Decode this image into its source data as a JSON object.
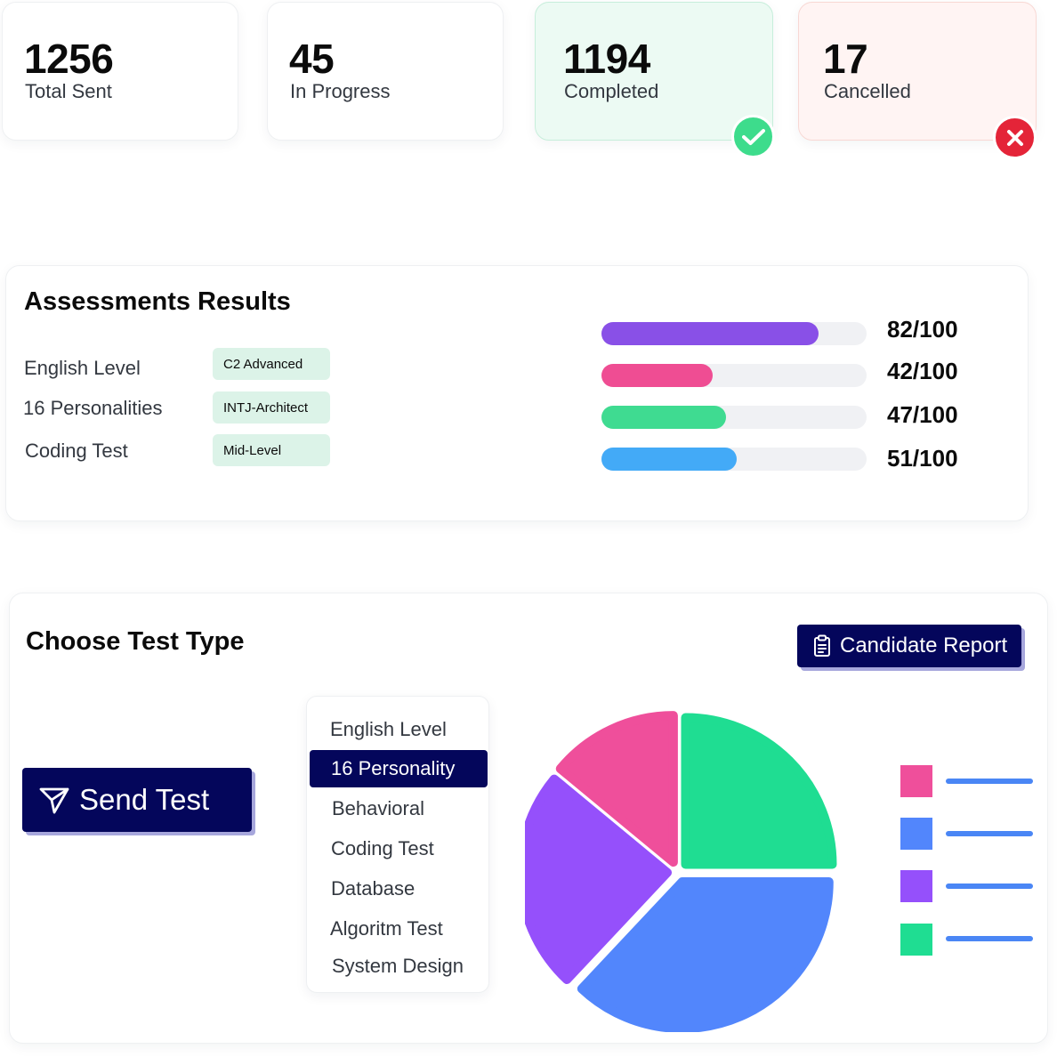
{
  "stats": [
    {
      "value": "1256",
      "label": "Total Sent"
    },
    {
      "value": "45",
      "label": "In Progress"
    },
    {
      "value": "1194",
      "label": "Completed",
      "badge_icon": "check-icon"
    },
    {
      "value": "17",
      "label": "Cancelled",
      "badge_icon": "close-icon"
    }
  ],
  "assessments": {
    "title": "Assessments Results",
    "rows": [
      {
        "label": "English Level",
        "tag": "C2 Advanced"
      },
      {
        "label": "16 Personalities",
        "tag": "INTJ-Architect"
      },
      {
        "label": "Coding Test",
        "tag": "Mid-Level"
      }
    ],
    "scores": [
      {
        "text": "82/100",
        "value": 82,
        "color": "#8950e7"
      },
      {
        "text": "42/100",
        "value": 42,
        "color": "#ef4d93"
      },
      {
        "text": "47/100",
        "value": 47,
        "color": "#3fdb91"
      },
      {
        "text": "51/100",
        "value": 51,
        "color": "#43aaf7"
      }
    ]
  },
  "choose_test": {
    "title": "Choose Test Type",
    "report_button": {
      "label": "Candidate Report",
      "icon": "clipboard-icon"
    },
    "send_button": {
      "label": "Send Test",
      "icon": "send-icon"
    },
    "test_types": [
      "English Level",
      "16 Personality",
      "Behavioral",
      "Coding Test",
      "Database",
      "Algoritm Test",
      "System Design"
    ],
    "selected_test_type": "16 Personality"
  },
  "chart_data": {
    "type": "pie",
    "series": [
      {
        "value": 25,
        "color": "#1fdd92"
      },
      {
        "value": 37,
        "color": "#5286fc"
      },
      {
        "value": 24,
        "color": "#9550fb"
      },
      {
        "value": 14,
        "color": "#ef4f9b"
      }
    ],
    "legend_placement": "right"
  },
  "colors": {
    "primary": "#04065b",
    "shadow_accent": "#a7a7dc",
    "success": "#3ddc8c",
    "danger": "#e42438"
  }
}
